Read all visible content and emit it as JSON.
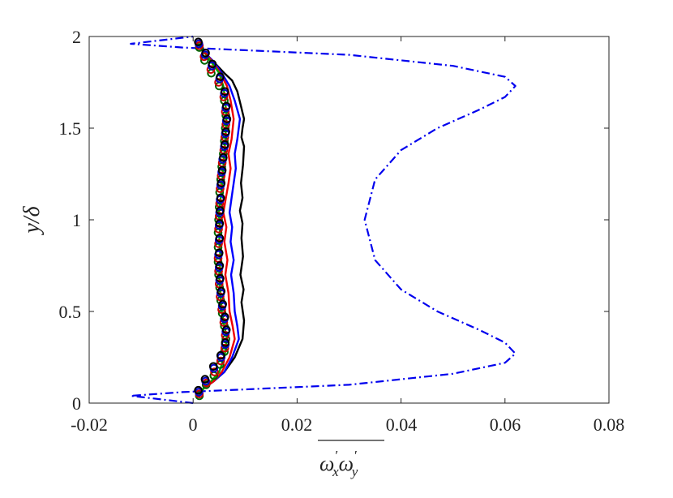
{
  "chart_data": {
    "type": "line",
    "title": "",
    "xlabel": "ω'xω'y",
    "ylabel": "y/δ",
    "xlim": [
      -0.02,
      0.08
    ],
    "ylim": [
      0,
      2
    ],
    "grid": false,
    "xticks": [
      "-0.02",
      "0",
      "0.02",
      "0.04",
      "0.06",
      "0.08"
    ],
    "yticks": [
      "0",
      "0.5",
      "1",
      "1.5",
      "2"
    ],
    "series": [
      {
        "style": "dash-dot",
        "color": "#0000ee",
        "marker": "none",
        "x": [
          0.0,
          -0.012,
          -0.002,
          0.01,
          0.03,
          0.05,
          0.06,
          0.062,
          0.06,
          0.055,
          0.047,
          0.04,
          0.035,
          0.033,
          0.035,
          0.04,
          0.047,
          0.055,
          0.06,
          0.062,
          0.06,
          0.05,
          0.03,
          0.01,
          -0.002,
          -0.012,
          0.0
        ],
        "y": [
          0.0,
          0.04,
          0.06,
          0.075,
          0.1,
          0.16,
          0.22,
          0.27,
          0.33,
          0.4,
          0.5,
          0.62,
          0.78,
          1.0,
          1.22,
          1.38,
          1.5,
          1.6,
          1.67,
          1.73,
          1.78,
          1.84,
          1.9,
          1.925,
          1.94,
          1.96,
          2.0
        ]
      },
      {
        "style": "solid",
        "color": "#000000",
        "marker": "none",
        "x": [
          0.001,
          0.002,
          0.004,
          0.006,
          0.008,
          0.0095,
          0.0098,
          0.0093,
          0.0097,
          0.0091,
          0.0096,
          0.0093,
          0.0095,
          0.009,
          0.0095,
          0.0092,
          0.0096,
          0.0098,
          0.0093,
          0.0095,
          0.0098,
          0.0092,
          0.0085,
          0.0075,
          0.006,
          0.004,
          0.002,
          0.001
        ],
        "y": [
          0.03,
          0.08,
          0.12,
          0.17,
          0.25,
          0.35,
          0.45,
          0.55,
          0.62,
          0.7,
          0.8,
          0.9,
          0.98,
          1.05,
          1.12,
          1.2,
          1.3,
          1.4,
          1.45,
          1.5,
          1.55,
          1.62,
          1.7,
          1.76,
          1.8,
          1.86,
          1.92,
          1.96
        ]
      },
      {
        "style": "solid",
        "color": "#0000ff",
        "marker": "none",
        "x": [
          0.001,
          0.002,
          0.004,
          0.006,
          0.0075,
          0.0088,
          0.0085,
          0.008,
          0.0078,
          0.0073,
          0.0078,
          0.0072,
          0.0075,
          0.007,
          0.0074,
          0.0078,
          0.0082,
          0.008,
          0.0085,
          0.009,
          0.008,
          0.007,
          0.0055,
          0.004,
          0.002,
          0.001
        ],
        "y": [
          0.03,
          0.08,
          0.12,
          0.17,
          0.25,
          0.35,
          0.42,
          0.5,
          0.6,
          0.7,
          0.78,
          0.88,
          0.96,
          1.04,
          1.12,
          1.2,
          1.28,
          1.36,
          1.44,
          1.55,
          1.65,
          1.73,
          1.8,
          1.86,
          1.92,
          1.96
        ]
      },
      {
        "style": "solid",
        "color": "#ee0000",
        "marker": "none",
        "x": [
          0.001,
          0.002,
          0.004,
          0.0055,
          0.007,
          0.008,
          0.0076,
          0.007,
          0.0068,
          0.0062,
          0.0066,
          0.006,
          0.0064,
          0.0058,
          0.0063,
          0.0068,
          0.0072,
          0.0068,
          0.0074,
          0.0078,
          0.0072,
          0.0065,
          0.0052,
          0.0038,
          0.002,
          0.001
        ],
        "y": [
          0.03,
          0.08,
          0.12,
          0.17,
          0.25,
          0.35,
          0.42,
          0.5,
          0.6,
          0.7,
          0.78,
          0.88,
          0.96,
          1.04,
          1.12,
          1.2,
          1.28,
          1.36,
          1.44,
          1.55,
          1.65,
          1.73,
          1.8,
          1.86,
          1.92,
          1.96
        ]
      },
      {
        "style": "solid",
        "color": "#00aa00",
        "marker": "none",
        "x": [
          0.001,
          0.002,
          0.0035,
          0.005,
          0.006,
          0.0065,
          0.006,
          0.0055,
          0.0052,
          0.005,
          0.0053,
          0.005,
          0.0052,
          0.0049,
          0.0053,
          0.0056,
          0.0058,
          0.006,
          0.0062,
          0.0064,
          0.0062,
          0.0058,
          0.005,
          0.0035,
          0.002,
          0.001
        ],
        "y": [
          0.03,
          0.08,
          0.12,
          0.17,
          0.25,
          0.35,
          0.42,
          0.5,
          0.6,
          0.7,
          0.78,
          0.88,
          0.96,
          1.04,
          1.12,
          1.2,
          1.28,
          1.36,
          1.44,
          1.55,
          1.65,
          1.73,
          1.8,
          1.86,
          1.92,
          1.96
        ]
      },
      {
        "style": "none",
        "color": "#006400",
        "marker": "circle",
        "x": [
          0.0012,
          0.0025,
          0.004,
          0.0052,
          0.006,
          0.0063,
          0.006,
          0.0056,
          0.0053,
          0.0051,
          0.0049,
          0.0048,
          0.0048,
          0.0048,
          0.0049,
          0.005,
          0.0051,
          0.0053,
          0.0055,
          0.0058,
          0.006,
          0.0062,
          0.0063,
          0.006,
          0.005,
          0.0035,
          0.0022,
          0.0012
        ],
        "y": [
          0.04,
          0.1,
          0.15,
          0.21,
          0.28,
          0.35,
          0.42,
          0.49,
          0.56,
          0.63,
          0.7,
          0.77,
          0.85,
          0.93,
          1.0,
          1.07,
          1.15,
          1.22,
          1.29,
          1.36,
          1.43,
          1.5,
          1.57,
          1.65,
          1.73,
          1.8,
          1.87,
          1.94
        ]
      },
      {
        "style": "none",
        "color": "#cc0000",
        "marker": "circle",
        "x": [
          0.0012,
          0.0026,
          0.0041,
          0.0053,
          0.0061,
          0.0062,
          0.0059,
          0.0055,
          0.0052,
          0.005,
          0.0049,
          0.0048,
          0.0049,
          0.0049,
          0.005,
          0.0051,
          0.0052,
          0.0054,
          0.0056,
          0.0059,
          0.0061,
          0.0063,
          0.0062,
          0.0059,
          0.0049,
          0.0034,
          0.0021,
          0.0012
        ],
        "y": [
          0.05,
          0.11,
          0.17,
          0.23,
          0.3,
          0.37,
          0.44,
          0.51,
          0.58,
          0.65,
          0.72,
          0.79,
          0.87,
          0.95,
          1.02,
          1.09,
          1.17,
          1.24,
          1.31,
          1.38,
          1.45,
          1.52,
          1.59,
          1.67,
          1.75,
          1.82,
          1.89,
          1.95
        ]
      },
      {
        "style": "none",
        "color": "#0000cc",
        "marker": "circle",
        "x": [
          0.0011,
          0.0024,
          0.004,
          0.0054,
          0.0062,
          0.0063,
          0.006,
          0.0056,
          0.0053,
          0.0051,
          0.005,
          0.0049,
          0.005,
          0.005,
          0.0051,
          0.0052,
          0.0053,
          0.0055,
          0.0057,
          0.006,
          0.0062,
          0.0064,
          0.0063,
          0.006,
          0.0051,
          0.0036,
          0.0023,
          0.0011
        ],
        "y": [
          0.06,
          0.12,
          0.19,
          0.25,
          0.32,
          0.39,
          0.46,
          0.53,
          0.6,
          0.67,
          0.74,
          0.81,
          0.89,
          0.97,
          1.04,
          1.11,
          1.19,
          1.26,
          1.33,
          1.4,
          1.47,
          1.54,
          1.61,
          1.69,
          1.77,
          1.84,
          1.9,
          1.96
        ]
      },
      {
        "style": "none",
        "color": "#000000",
        "marker": "circle",
        "x": [
          0.001,
          0.0023,
          0.0039,
          0.0053,
          0.0062,
          0.0064,
          0.0061,
          0.0057,
          0.0054,
          0.0052,
          0.0051,
          0.005,
          0.0051,
          0.0051,
          0.0052,
          0.0053,
          0.0054,
          0.0056,
          0.0058,
          0.0061,
          0.0063,
          0.0065,
          0.0064,
          0.0061,
          0.0052,
          0.0037,
          0.0024,
          0.001
        ],
        "y": [
          0.07,
          0.13,
          0.2,
          0.26,
          0.33,
          0.4,
          0.47,
          0.54,
          0.61,
          0.68,
          0.75,
          0.82,
          0.9,
          0.98,
          1.05,
          1.12,
          1.2,
          1.27,
          1.34,
          1.41,
          1.48,
          1.55,
          1.62,
          1.7,
          1.78,
          1.85,
          1.91,
          1.97
        ]
      }
    ]
  }
}
